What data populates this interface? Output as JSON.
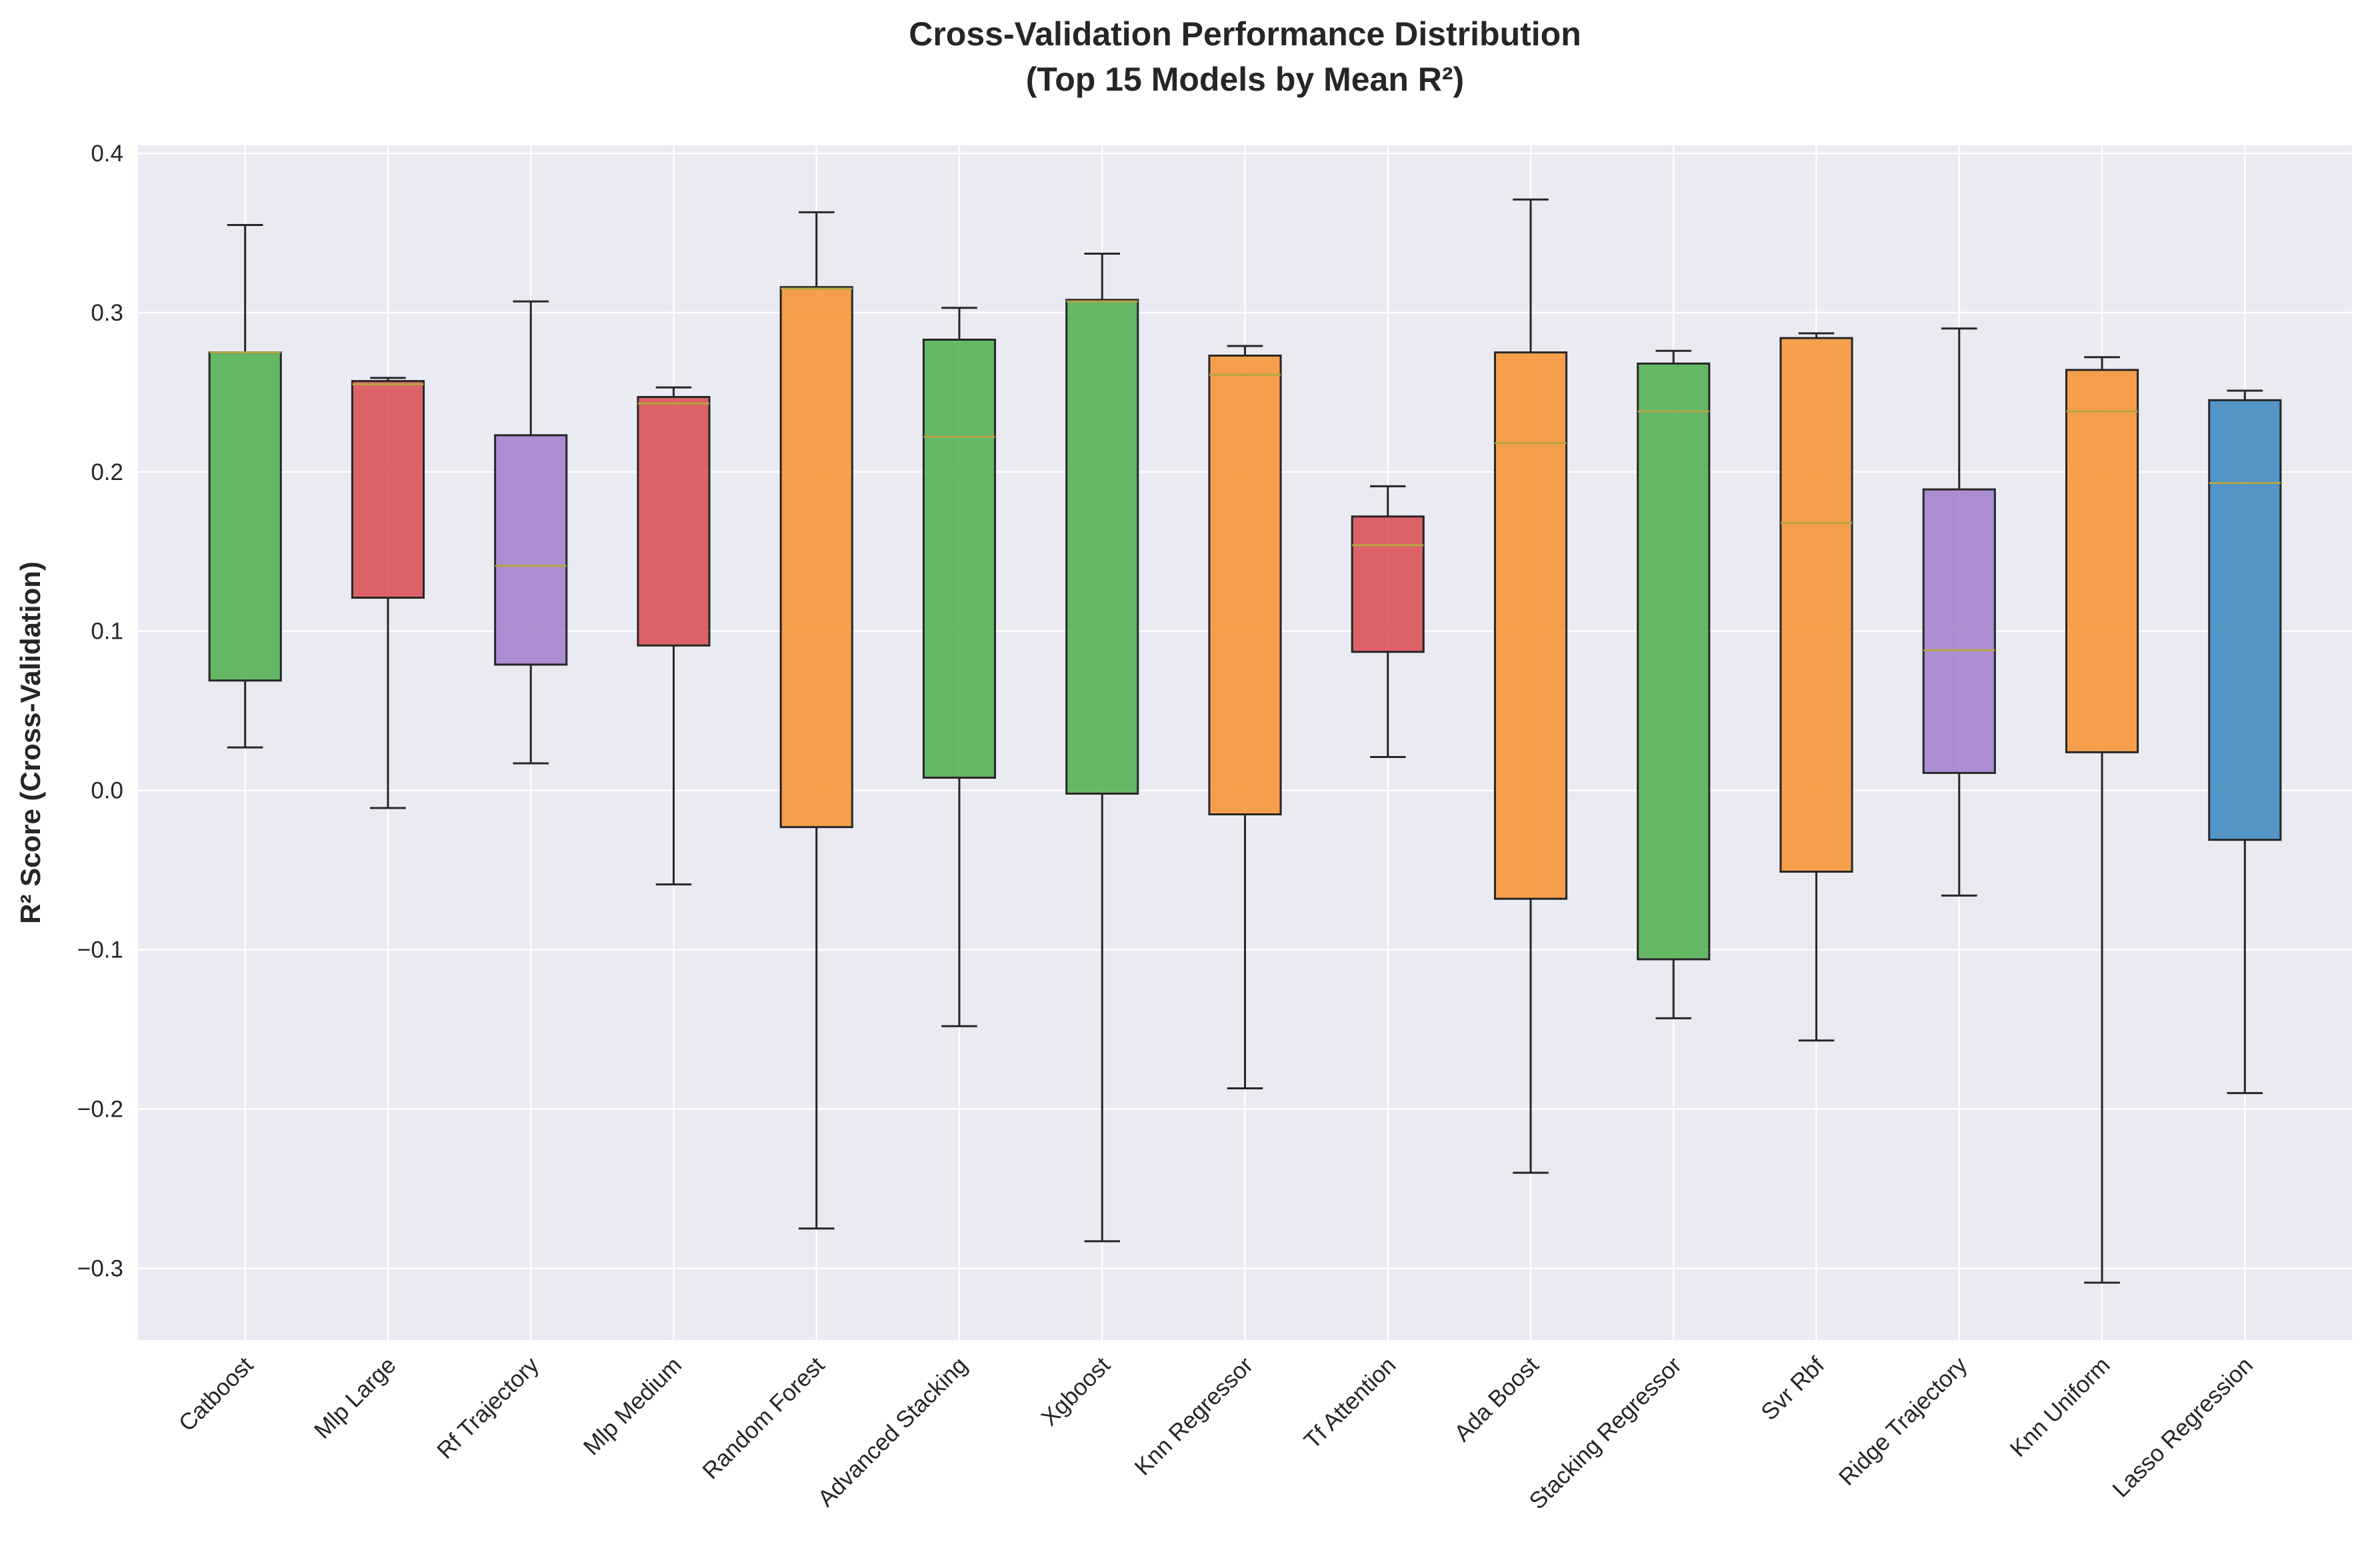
{
  "chart_data": {
    "type": "box",
    "title_line1": "Cross-Validation Performance Distribution",
    "title_line2": "(Top 15 Models by Mean R²)",
    "xlabel": "",
    "ylabel": "R² Score (Cross-Validation)",
    "ylim": [
      -0.345,
      0.405
    ],
    "yticks": [
      -0.3,
      -0.2,
      -0.1,
      0.0,
      0.1,
      0.2,
      0.3,
      0.4
    ],
    "ytick_labels": [
      "−0.3",
      "−0.2",
      "−0.1",
      "0.0",
      "0.1",
      "0.2",
      "0.3",
      "0.4"
    ],
    "grid": true,
    "colors": {
      "background": "#eaeaf2",
      "grid": "#ffffff",
      "median": "#b5a642",
      "edge": "#262626"
    },
    "categories": [
      "Catboost",
      "Mlp Large",
      "Rf Trajectory",
      "Mlp Medium",
      "Random Forest",
      "Advanced Stacking",
      "Xgboost",
      "Knn Regressor",
      "Tf Attention",
      "Ada Boost",
      "Stacking Regressor",
      "Svr Rbf",
      "Ridge Trajectory",
      "Knn Uniform",
      "Lasso Regression"
    ],
    "boxes": [
      {
        "whisker_low": 0.027,
        "q1": 0.069,
        "median": 0.275,
        "q3": 0.275,
        "whisker_high": 0.355,
        "color": "#4cae4c"
      },
      {
        "whisker_low": -0.011,
        "q1": 0.121,
        "median": 0.255,
        "q3": 0.257,
        "whisker_high": 0.259,
        "color": "#d94a4f"
      },
      {
        "whisker_low": 0.017,
        "q1": 0.079,
        "median": 0.141,
        "q3": 0.223,
        "whisker_high": 0.307,
        "color": "#a07ccb"
      },
      {
        "whisker_low": -0.059,
        "q1": 0.091,
        "median": 0.243,
        "q3": 0.247,
        "whisker_high": 0.253,
        "color": "#d94a4f"
      },
      {
        "whisker_low": -0.275,
        "q1": -0.023,
        "median": 0.315,
        "q3": 0.316,
        "whisker_high": 0.363,
        "color": "#f7922f"
      },
      {
        "whisker_low": -0.148,
        "q1": 0.008,
        "median": 0.222,
        "q3": 0.283,
        "whisker_high": 0.303,
        "color": "#4cae4c"
      },
      {
        "whisker_low": -0.283,
        "q1": -0.002,
        "median": 0.307,
        "q3": 0.308,
        "whisker_high": 0.337,
        "color": "#4cae4c"
      },
      {
        "whisker_low": -0.187,
        "q1": -0.015,
        "median": 0.261,
        "q3": 0.273,
        "whisker_high": 0.279,
        "color": "#f7922f"
      },
      {
        "whisker_low": 0.021,
        "q1": 0.087,
        "median": 0.154,
        "q3": 0.172,
        "whisker_high": 0.191,
        "color": "#d94a4f"
      },
      {
        "whisker_low": -0.24,
        "q1": -0.068,
        "median": 0.218,
        "q3": 0.275,
        "whisker_high": 0.371,
        "color": "#f7922f"
      },
      {
        "whisker_low": -0.143,
        "q1": -0.106,
        "median": 0.238,
        "q3": 0.268,
        "whisker_high": 0.276,
        "color": "#4cae4c"
      },
      {
        "whisker_low": -0.157,
        "q1": -0.051,
        "median": 0.168,
        "q3": 0.284,
        "whisker_high": 0.287,
        "color": "#f7922f"
      },
      {
        "whisker_low": -0.066,
        "q1": 0.011,
        "median": 0.088,
        "q3": 0.189,
        "whisker_high": 0.29,
        "color": "#a07ccb"
      },
      {
        "whisker_low": -0.309,
        "q1": 0.024,
        "median": 0.238,
        "q3": 0.264,
        "whisker_high": 0.272,
        "color": "#f7922f"
      },
      {
        "whisker_low": -0.19,
        "q1": -0.031,
        "median": 0.193,
        "q3": 0.245,
        "whisker_high": 0.251,
        "color": "#3a86c0"
      }
    ]
  }
}
